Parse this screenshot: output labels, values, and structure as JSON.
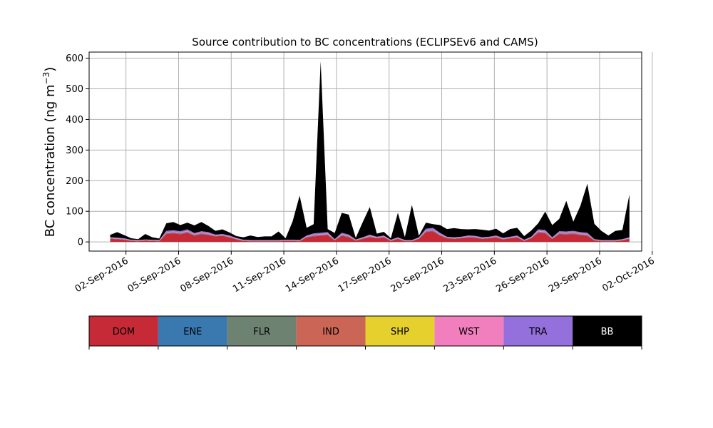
{
  "chart_data": {
    "type": "area",
    "title": "Source contribution to BC concentrations (ECLIPSEv6 and CAMS)",
    "ylabel_main": "BC concentration (ng m",
    "ylabel_sup": "−3",
    "ylabel_close": ")",
    "xlabel": "",
    "ylim": [
      -30,
      620
    ],
    "xlim": [
      -1.1,
      30.4
    ],
    "x_unit": "days since 01-Sep-2016",
    "grid": true,
    "yticks": [
      0,
      100,
      200,
      300,
      400,
      500,
      600
    ],
    "ytick_labels": [
      "0",
      "100",
      "200",
      "300",
      "400",
      "500",
      "600"
    ],
    "xticks": [
      1,
      4,
      7,
      10,
      13,
      16,
      19,
      22,
      25,
      28,
      31
    ],
    "xtick_labels": [
      "02-Sep-2016",
      "05-Sep-2016",
      "08-Sep-2016",
      "11-Sep-2016",
      "14-Sep-2016",
      "17-Sep-2016",
      "20-Sep-2016",
      "23-Sep-2016",
      "26-Sep-2016",
      "29-Sep-2016",
      "02-Oct-2016"
    ],
    "x": [
      0.1,
      0.5,
      0.9,
      1.3,
      1.7,
      2.1,
      2.5,
      2.9,
      3.3,
      3.7,
      4.1,
      4.5,
      4.9,
      5.3,
      5.7,
      6.1,
      6.5,
      6.9,
      7.3,
      7.7,
      8.1,
      8.5,
      8.9,
      9.3,
      9.7,
      10.1,
      10.5,
      10.9,
      11.3,
      11.7,
      12.1,
      12.5,
      12.9,
      13.3,
      13.7,
      14.1,
      14.5,
      14.9,
      15.3,
      15.7,
      16.1,
      16.5,
      16.9,
      17.3,
      17.7,
      18.1,
      18.5,
      18.9,
      19.3,
      19.7,
      20.1,
      20.5,
      20.9,
      21.3,
      21.7,
      22.1,
      22.5,
      22.9,
      23.3,
      23.7,
      24.1,
      24.5,
      24.9,
      25.3,
      25.7,
      26.1,
      26.5,
      26.9,
      27.3,
      27.7,
      28.1,
      28.5,
      28.9,
      29.3,
      29.7
    ],
    "series": [
      {
        "name": "DOM",
        "color": "#c62a37",
        "values": [
          10,
          9,
          7,
          3,
          2,
          4,
          3,
          2,
          26,
          28,
          25,
          30,
          20,
          25,
          22,
          18,
          20,
          15,
          8,
          3,
          2,
          2,
          2,
          2,
          2,
          3,
          3,
          2,
          15,
          18,
          20,
          22,
          5,
          20,
          15,
          4,
          10,
          15,
          12,
          15,
          3,
          10,
          2,
          2,
          10,
          32,
          35,
          20,
          12,
          10,
          12,
          15,
          14,
          10,
          12,
          15,
          8,
          12,
          15,
          3,
          12,
          30,
          28,
          10,
          25,
          24,
          26,
          22,
          20,
          5,
          2,
          2,
          2,
          5,
          10
        ]
      },
      {
        "name": "ENE",
        "color": "#3a78b0",
        "values": [
          1,
          1,
          1,
          1,
          1,
          1,
          1,
          1,
          2,
          2,
          2,
          2,
          2,
          2,
          2,
          1,
          1,
          1,
          1,
          1,
          1,
          1,
          1,
          1,
          1,
          1,
          1,
          1,
          1,
          2,
          2,
          2,
          1,
          2,
          2,
          1,
          1,
          2,
          1,
          1,
          1,
          1,
          1,
          1,
          1,
          2,
          2,
          2,
          1,
          1,
          1,
          1,
          1,
          1,
          1,
          1,
          1,
          1,
          1,
          1,
          1,
          2,
          2,
          1,
          2,
          2,
          2,
          2,
          2,
          1,
          1,
          1,
          1,
          1,
          1
        ]
      },
      {
        "name": "FLR",
        "color": "#6e8272",
        "values": [
          0,
          0,
          0,
          0,
          0,
          0,
          0,
          0,
          0,
          0,
          0,
          0,
          0,
          0,
          0,
          0,
          0,
          0,
          0,
          0,
          0,
          0,
          0,
          0,
          0,
          0,
          0,
          0,
          0,
          0,
          0,
          0,
          0,
          0,
          0,
          0,
          0,
          0,
          0,
          0,
          0,
          0,
          0,
          0,
          0,
          0,
          0,
          0,
          0,
          0,
          0,
          0,
          0,
          0,
          0,
          0,
          0,
          0,
          0,
          0,
          0,
          0,
          0,
          0,
          0,
          0,
          0,
          0,
          0,
          0,
          0,
          0,
          0,
          0,
          0
        ]
      },
      {
        "name": "IND",
        "color": "#cb6656",
        "values": [
          1,
          1,
          1,
          1,
          1,
          1,
          1,
          1,
          2,
          2,
          2,
          2,
          2,
          2,
          2,
          1,
          1,
          1,
          1,
          1,
          1,
          1,
          1,
          1,
          1,
          1,
          1,
          1,
          1,
          2,
          2,
          2,
          1,
          2,
          2,
          1,
          1,
          2,
          1,
          1,
          1,
          1,
          1,
          1,
          1,
          2,
          2,
          2,
          1,
          1,
          1,
          1,
          1,
          1,
          1,
          1,
          1,
          1,
          1,
          1,
          1,
          2,
          2,
          1,
          2,
          2,
          2,
          2,
          2,
          1,
          1,
          1,
          1,
          1,
          1
        ]
      },
      {
        "name": "SHP",
        "color": "#e5d02d",
        "values": [
          0,
          0,
          0,
          0,
          0,
          0,
          0,
          0,
          0,
          0,
          0,
          0,
          0,
          0,
          0,
          0,
          0,
          0,
          0,
          0,
          0,
          0,
          0,
          0,
          0,
          0,
          0,
          0,
          0,
          0,
          0,
          0,
          0,
          0,
          0,
          0,
          0,
          0,
          0,
          0,
          0,
          0,
          0,
          0,
          0,
          0,
          0,
          0,
          0,
          0,
          0,
          0,
          0,
          0,
          0,
          0,
          0,
          0,
          0,
          0,
          0,
          0,
          0,
          0,
          0,
          0,
          0,
          0,
          0,
          0,
          0,
          0,
          0,
          0,
          0
        ]
      },
      {
        "name": "WST",
        "color": "#f27fbd",
        "values": [
          1,
          1,
          1,
          1,
          1,
          1,
          1,
          1,
          2,
          2,
          2,
          2,
          2,
          2,
          2,
          1,
          1,
          1,
          1,
          1,
          1,
          1,
          1,
          1,
          1,
          1,
          1,
          1,
          1,
          2,
          2,
          2,
          1,
          2,
          2,
          1,
          1,
          2,
          1,
          1,
          1,
          1,
          1,
          1,
          1,
          2,
          2,
          2,
          1,
          1,
          1,
          1,
          1,
          1,
          1,
          1,
          1,
          1,
          1,
          1,
          1,
          2,
          2,
          1,
          2,
          2,
          2,
          2,
          2,
          1,
          1,
          1,
          1,
          1,
          1
        ]
      },
      {
        "name": "TRA",
        "color": "#9370db",
        "values": [
          2,
          2,
          2,
          1,
          1,
          1,
          1,
          1,
          4,
          4,
          4,
          5,
          3,
          4,
          4,
          3,
          3,
          3,
          2,
          1,
          1,
          1,
          1,
          1,
          1,
          1,
          1,
          1,
          3,
          4,
          4,
          4,
          1,
          4,
          3,
          1,
          2,
          3,
          2,
          3,
          1,
          2,
          1,
          1,
          2,
          5,
          5,
          4,
          2,
          2,
          2,
          3,
          3,
          2,
          2,
          3,
          2,
          2,
          3,
          1,
          2,
          5,
          5,
          2,
          4,
          4,
          4,
          4,
          4,
          1,
          1,
          1,
          1,
          1,
          2
        ]
      },
      {
        "name": "BB",
        "color": "#000000",
        "values": [
          8,
          18,
          10,
          5,
          3,
          18,
          8,
          5,
          25,
          27,
          20,
          22,
          25,
          30,
          20,
          12,
          15,
          10,
          6,
          8,
          15,
          10,
          12,
          12,
          28,
          5,
          60,
          145,
          25,
          30,
          560,
          10,
          20,
          65,
          65,
          5,
          50,
          90,
          10,
          12,
          5,
          80,
          10,
          115,
          5,
          20,
          12,
          25,
          25,
          30,
          25,
          20,
          22,
          25,
          20,
          22,
          15,
          25,
          25,
          12,
          20,
          20,
          60,
          40,
          40,
          100,
          30,
          85,
          160,
          50,
          30,
          15,
          30,
          30,
          140
        ]
      }
    ]
  },
  "legend": {
    "items": [
      {
        "label": "DOM",
        "color": "#c62a37",
        "text_color": "#000000"
      },
      {
        "label": "ENE",
        "color": "#3a78b0",
        "text_color": "#000000"
      },
      {
        "label": "FLR",
        "color": "#6e8272",
        "text_color": "#000000"
      },
      {
        "label": "IND",
        "color": "#cb6656",
        "text_color": "#000000"
      },
      {
        "label": "SHP",
        "color": "#e5d02d",
        "text_color": "#000000"
      },
      {
        "label": "WST",
        "color": "#f27fbd",
        "text_color": "#000000"
      },
      {
        "label": "TRA",
        "color": "#9370db",
        "text_color": "#000000"
      },
      {
        "label": "BB",
        "color": "#000000",
        "text_color": "#ffffff"
      }
    ]
  }
}
